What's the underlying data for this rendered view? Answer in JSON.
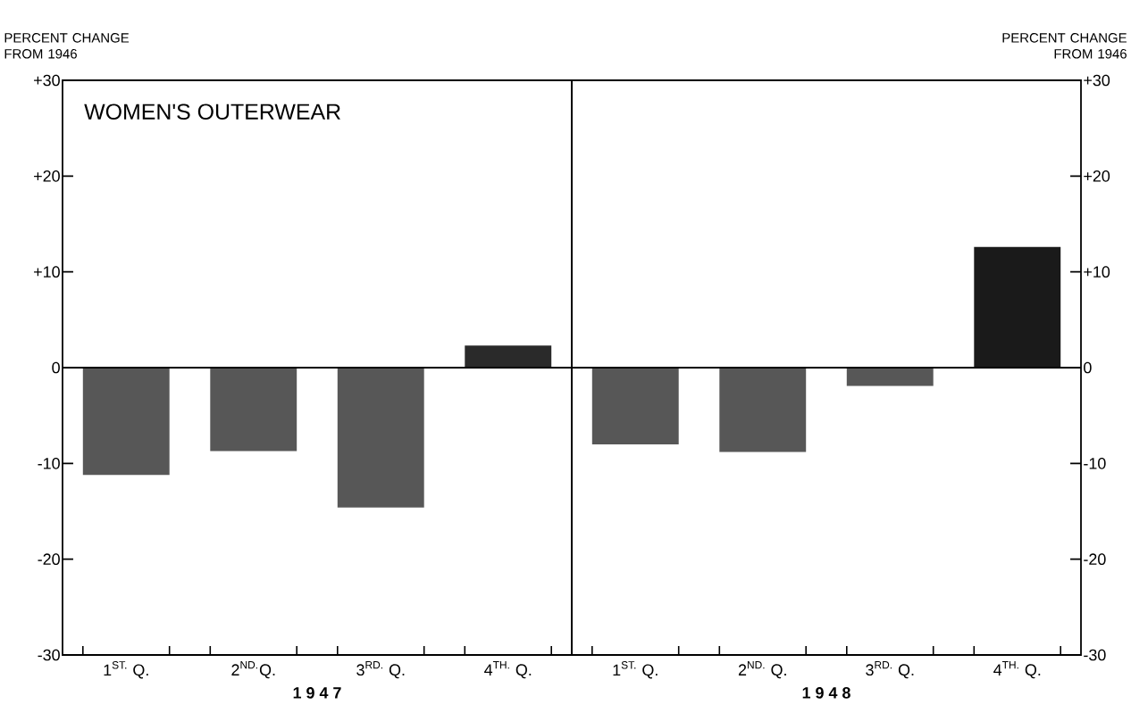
{
  "chart_data": [
    {
      "type": "bar",
      "title": "WOMEN'S  OUTERWEAR",
      "ylabel": "PERCENT CHANGE\nFROM 1946",
      "xlabel": "1 9 4 7",
      "categories": [
        "1$^{ST.}$ Q.",
        "2$^{ND.}$Q.",
        "3$^{RD.}$ Q.",
        "4$^{TH.}$ Q."
      ],
      "values": [
        -11.2,
        -8.7,
        -14.6,
        2.3
      ],
      "colors": [
        "#575757",
        "#575757",
        "#575757",
        "#2a2a2a"
      ],
      "ylim": [
        -30,
        30
      ],
      "yticks": [
        {
          "value": 30,
          "label": "+30"
        },
        {
          "value": 20,
          "label": "+20"
        },
        {
          "value": 10,
          "label": "+10"
        },
        0,
        -10,
        -20,
        -30
      ],
      "ref_lines": [
        {
          "axis": "y",
          "value": 0
        }
      ]
    },
    {
      "type": "bar",
      "ylabel": "PERCENT CHANGE\nFROM 1946",
      "xlabel": "1 9 4 8",
      "categories": [
        "1$^{ST.}$ Q.",
        "2$^{ND.}$ Q.",
        "3$^{RD.}$ Q.",
        "4$^{TH.}$ Q."
      ],
      "values": [
        -8.0,
        -8.8,
        -1.9,
        12.6
      ],
      "colors": [
        "#575757",
        "#575757",
        "#575757",
        "#1a1a1a"
      ],
      "ylim": [
        -30,
        30
      ],
      "yticks": [
        {
          "value": 30,
          "label": "+30"
        },
        {
          "value": 20,
          "label": "+20"
        },
        {
          "value": 10,
          "label": "+10"
        },
        0,
        -10,
        -20,
        -30
      ],
      "ref_lines": [
        {
          "axis": "y",
          "value": 0
        }
      ]
    }
  ]
}
